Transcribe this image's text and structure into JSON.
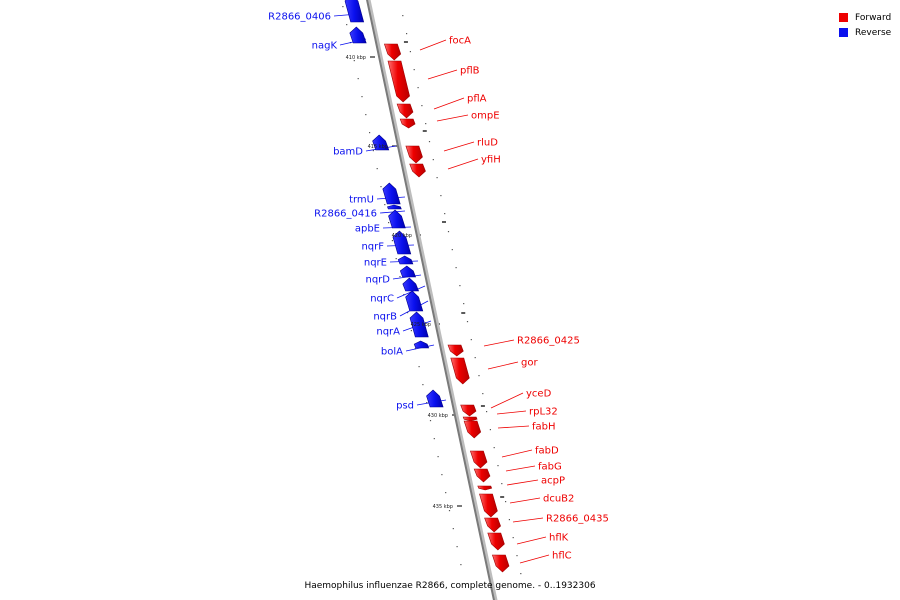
{
  "caption": "Haemophilus influenzae R2866, complete genome. - 0..1932306",
  "colors": {
    "forward": "#ee0000",
    "reverse": "#0a10ee",
    "backbone": "#8c8c8c",
    "leader": "#444444"
  },
  "legend": [
    {
      "label": "Forward",
      "strand": "forward"
    },
    {
      "label": "Reverse",
      "strand": "reverse"
    }
  ],
  "ticks": [
    {
      "label": "410 kbp",
      "kbp": 410
    },
    {
      "label": "415 kbp",
      "kbp": 415
    },
    {
      "label": "420 kbp",
      "kbp": 420
    },
    {
      "label": "425 kbp",
      "kbp": 425
    },
    {
      "label": "430 kbp",
      "kbp": 430
    },
    {
      "label": "435 kbp",
      "kbp": 435
    }
  ],
  "genes": [
    {
      "name": "R2866_0406",
      "strand": "reverse"
    },
    {
      "name": "nagK",
      "strand": "reverse"
    },
    {
      "name": "focA",
      "strand": "forward"
    },
    {
      "name": "pflB",
      "strand": "forward"
    },
    {
      "name": "pflA",
      "strand": "forward"
    },
    {
      "name": "ompE",
      "strand": "forward"
    },
    {
      "name": "bamD",
      "strand": "reverse"
    },
    {
      "name": "rluD",
      "strand": "forward"
    },
    {
      "name": "yfiH",
      "strand": "forward"
    },
    {
      "name": "trmU",
      "strand": "reverse"
    },
    {
      "name": "R2866_0416",
      "strand": "reverse"
    },
    {
      "name": "apbE",
      "strand": "reverse"
    },
    {
      "name": "nqrF",
      "strand": "reverse"
    },
    {
      "name": "nqrE",
      "strand": "reverse"
    },
    {
      "name": "nqrD",
      "strand": "reverse"
    },
    {
      "name": "nqrC",
      "strand": "reverse"
    },
    {
      "name": "nqrB",
      "strand": "reverse"
    },
    {
      "name": "nqrA",
      "strand": "reverse"
    },
    {
      "name": "bolA",
      "strand": "reverse"
    },
    {
      "name": "R2866_0425",
      "strand": "forward"
    },
    {
      "name": "gor",
      "strand": "forward"
    },
    {
      "name": "psd",
      "strand": "reverse"
    },
    {
      "name": "yceD",
      "strand": "forward"
    },
    {
      "name": "rpL32",
      "strand": "forward"
    },
    {
      "name": "fabH",
      "strand": "forward"
    },
    {
      "name": "fabD",
      "strand": "forward"
    },
    {
      "name": "fabG",
      "strand": "forward"
    },
    {
      "name": "acpP",
      "strand": "forward"
    },
    {
      "name": "dcuB2",
      "strand": "forward"
    },
    {
      "name": "R2866_0435",
      "strand": "forward"
    },
    {
      "name": "hflK",
      "strand": "forward"
    },
    {
      "name": "hflC",
      "strand": "forward"
    }
  ]
}
